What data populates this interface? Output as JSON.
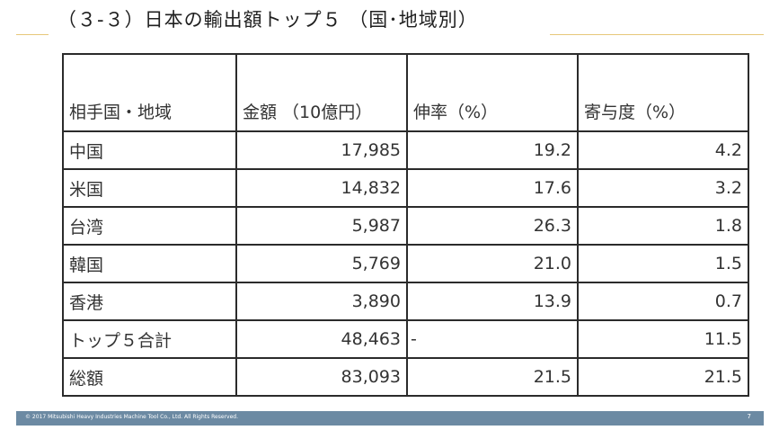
{
  "title": "（３-３）日本の輸出額トップ５ （国･地域別）",
  "table": {
    "headers": [
      "相手国・地域",
      "金額 （10億円）",
      "伸率（%）",
      "寄与度（%）"
    ],
    "rows": [
      {
        "region": "中国",
        "amount": "17,985",
        "growth": "19.2",
        "contribution": "4.2"
      },
      {
        "region": "米国",
        "amount": "14,832",
        "growth": "17.6",
        "contribution": "3.2"
      },
      {
        "region": "台湾",
        "amount": "5,987",
        "growth": "26.3",
        "contribution": "1.8"
      },
      {
        "region": "韓国",
        "amount": "5,769",
        "growth": "21.0",
        "contribution": "1.5"
      },
      {
        "region": "香港",
        "amount": "3,890",
        "growth": "13.9",
        "contribution": "0.7"
      },
      {
        "region": "トップ５合計",
        "amount": "48,463",
        "growth": "-",
        "contribution": "11.5"
      },
      {
        "region": "総額",
        "amount": "83,093",
        "growth": "21.5",
        "contribution": "21.5"
      }
    ]
  },
  "footer": {
    "copyright": "© 2017 Mitsubishi Heavy Industries Machine Tool Co., Ltd.   All Rights Reserved.",
    "page_number": "7"
  },
  "colors": {
    "accent_rule": "#e7c77a",
    "footer_bar": "#6c8aa3"
  }
}
